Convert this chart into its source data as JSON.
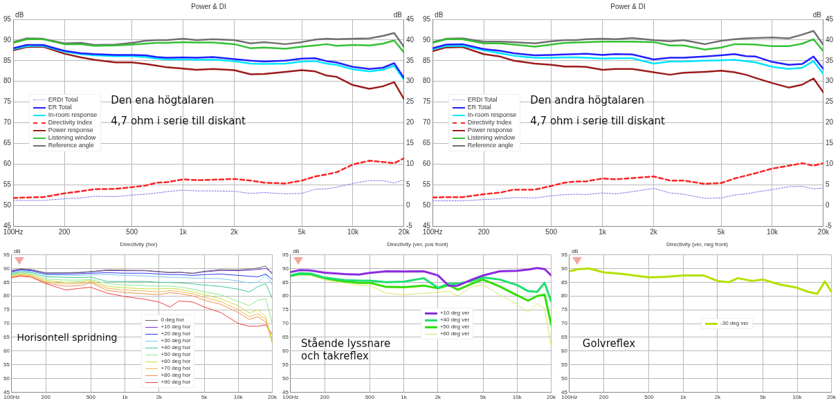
{
  "chart_data": [
    {
      "type": "line",
      "title": "Power & DI",
      "ylabel": "dB",
      "y2label": "dB",
      "log": "x",
      "grid": true,
      "legend": "left",
      "annotations": [
        "Den ena högtalaren",
        "4,7 ohm i serie till diskant"
      ],
      "x": [
        100,
        120,
        150,
        200,
        250,
        300,
        400,
        500,
        600,
        700,
        800,
        1000,
        1200,
        1500,
        2000,
        2500,
        3000,
        4000,
        5000,
        6000,
        7000,
        8000,
        10000,
        12500,
        15000,
        17500,
        20000
      ],
      "xlim": [
        100,
        20000
      ],
      "xticks": [
        {
          "value": 100,
          "label": "100Hz"
        },
        {
          "value": 200,
          "label": "200"
        },
        {
          "value": 500,
          "label": "500"
        },
        {
          "value": 1000,
          "label": "1k"
        },
        {
          "value": 2000,
          "label": "2k"
        },
        {
          "value": 5000,
          "label": "5k"
        },
        {
          "value": 10000,
          "label": "10k"
        },
        {
          "value": 20000,
          "label": "20k"
        }
      ],
      "ylim": [
        45,
        95
      ],
      "yticks": [
        45,
        50,
        55,
        60,
        65,
        70,
        75,
        80,
        85,
        90,
        95
      ],
      "y2lim": [
        -5,
        45
      ],
      "y2ticks": [
        -5,
        0,
        5,
        10,
        15,
        20,
        25,
        30,
        35,
        40,
        45
      ],
      "series": [
        {
          "name": "ERDI Total",
          "color": "#6f6fe8",
          "axis": "y2",
          "line_style": "dotted",
          "values": [
            1.2,
            1.2,
            1.2,
            1.6,
            1.8,
            2.2,
            2.1,
            2.5,
            2.7,
            3.0,
            3.3,
            3.7,
            3.5,
            3.5,
            3.4,
            2.9,
            3.1,
            2.8,
            2.9,
            3.9,
            4.0,
            4.4,
            5.3,
            6.0,
            6.0,
            5.4,
            6.2
          ]
        },
        {
          "name": "ER Total",
          "color": "#1f1fff",
          "values": [
            88.0,
            88.8,
            88.8,
            87.4,
            86.8,
            86.6,
            86.4,
            86.4,
            86.3,
            85.9,
            85.7,
            85.8,
            85.7,
            85.9,
            85.4,
            85.0,
            84.8,
            85.0,
            85.5,
            85.6,
            84.9,
            84.6,
            83.5,
            83.0,
            83.3,
            84.4,
            80.8
          ]
        },
        {
          "name": "In-room response",
          "color": "#00e5ff",
          "values": [
            87.8,
            88.5,
            88.6,
            87.2,
            86.6,
            86.3,
            86.1,
            86.1,
            85.9,
            85.5,
            85.3,
            85.3,
            85.2,
            85.3,
            84.9,
            84.3,
            84.2,
            84.3,
            84.8,
            84.9,
            84.3,
            84.0,
            82.9,
            82.4,
            82.8,
            83.8,
            80.3
          ]
        },
        {
          "name": "Directivity Index",
          "color": "#ff2020",
          "axis": "y2",
          "line_style": "dashed",
          "values": [
            1.8,
            1.9,
            2.0,
            2.9,
            3.4,
            3.9,
            4.0,
            4.4,
            4.8,
            5.5,
            5.6,
            6.3,
            6.1,
            6.2,
            6.4,
            6.0,
            5.5,
            5.3,
            6.0,
            7.0,
            7.5,
            8.0,
            9.9,
            10.8,
            10.5,
            10.2,
            11.4
          ]
        },
        {
          "name": "Power response",
          "color": "#9b1b1b",
          "values": [
            87.5,
            88.3,
            88.4,
            86.7,
            85.8,
            85.2,
            84.6,
            84.6,
            84.2,
            83.8,
            83.4,
            83.1,
            82.8,
            83.0,
            82.7,
            81.7,
            81.8,
            82.3,
            82.7,
            82.4,
            81.4,
            81.1,
            79.1,
            78.2,
            78.8,
            79.8,
            75.7
          ]
        },
        {
          "name": "Listening window",
          "color": "#33c033",
          "values": [
            89.3,
            90.2,
            90.2,
            89.0,
            89.0,
            88.6,
            88.7,
            88.9,
            89.1,
            89.3,
            89.3,
            89.5,
            89.4,
            89.4,
            89.0,
            88.0,
            88.2,
            87.9,
            88.4,
            88.7,
            89.0,
            88.6,
            88.8,
            88.7,
            89.1,
            89.9,
            87.0
          ]
        },
        {
          "name": "Reference angle",
          "color": "#707070",
          "values": [
            89.5,
            90.4,
            90.3,
            89.2,
            89.3,
            88.8,
            88.9,
            89.3,
            89.8,
            90.0,
            90.0,
            90.3,
            90.0,
            90.2,
            90.0,
            89.2,
            89.5,
            89.0,
            89.5,
            90.1,
            90.3,
            90.2,
            90.3,
            90.4,
            91.0,
            91.7,
            88.3
          ]
        }
      ]
    },
    {
      "type": "line",
      "title": "Power & DI",
      "ylabel": "dB",
      "y2label": "dB",
      "log": "x",
      "grid": true,
      "legend": "left",
      "annotations": [
        "Den andra högtalaren",
        "4,7 ohm i serie till diskant"
      ],
      "x": [
        100,
        120,
        150,
        200,
        250,
        300,
        400,
        500,
        600,
        700,
        800,
        1000,
        1200,
        1500,
        2000,
        2500,
        3000,
        4000,
        5000,
        6000,
        7000,
        8000,
        10000,
        12500,
        15000,
        17500,
        20000
      ],
      "xlim": [
        100,
        20000
      ],
      "xticks": [
        {
          "value": 100,
          "label": "100Hz"
        },
        {
          "value": 200,
          "label": "200"
        },
        {
          "value": 500,
          "label": "500"
        },
        {
          "value": 1000,
          "label": "1k"
        },
        {
          "value": 2000,
          "label": "2k"
        },
        {
          "value": 5000,
          "label": "5k"
        },
        {
          "value": 10000,
          "label": "10k"
        },
        {
          "value": 20000,
          "label": "20k"
        }
      ],
      "ylim": [
        45,
        95
      ],
      "yticks": [
        45,
        50,
        55,
        60,
        65,
        70,
        75,
        80,
        85,
        90,
        95
      ],
      "y2lim": [
        -5,
        45
      ],
      "y2ticks": [
        -5,
        0,
        5,
        10,
        15,
        20,
        25,
        30,
        35,
        40,
        45
      ],
      "series": [
        {
          "name": "ERDI Total",
          "color": "#6f6fe8",
          "axis": "y2",
          "line_style": "dotted",
          "values": [
            1.1,
            1.1,
            1.1,
            1.4,
            1.6,
            1.9,
            1.8,
            2.3,
            2.6,
            2.7,
            2.6,
            3.0,
            2.8,
            3.3,
            4.1,
            3.0,
            2.7,
            1.7,
            1.8,
            2.5,
            2.8,
            3.2,
            3.8,
            4.5,
            4.6,
            4.0,
            4.2
          ]
        },
        {
          "name": "ER Total",
          "color": "#1f1fff",
          "values": [
            88.0,
            88.9,
            89.0,
            87.8,
            87.4,
            86.8,
            86.3,
            86.4,
            86.5,
            86.6,
            86.7,
            86.4,
            86.6,
            86.5,
            85.3,
            85.7,
            85.7,
            86.0,
            86.3,
            86.6,
            86.1,
            86.0,
            84.7,
            84.0,
            84.2,
            86.0,
            83.0
          ]
        },
        {
          "name": "In-room response",
          "color": "#00e5ff",
          "values": [
            87.8,
            88.5,
            88.6,
            87.5,
            86.8,
            86.2,
            85.7,
            85.7,
            85.8,
            85.8,
            85.7,
            85.5,
            85.6,
            85.6,
            84.3,
            84.8,
            84.8,
            85.0,
            85.1,
            85.2,
            84.9,
            84.6,
            83.5,
            83.0,
            83.3,
            84.9,
            81.8
          ]
        },
        {
          "name": "Directivity Index",
          "color": "#ff2020",
          "axis": "y2",
          "line_style": "dashed",
          "values": [
            1.9,
            2.0,
            2.0,
            2.7,
            3.1,
            3.8,
            3.8,
            4.7,
            5.5,
            5.8,
            5.8,
            6.5,
            6.3,
            6.6,
            7.0,
            6.0,
            6.0,
            5.2,
            5.4,
            6.5,
            7.2,
            7.8,
            8.9,
            9.6,
            10.2,
            9.6,
            10.2
          ]
        },
        {
          "name": "Power response",
          "color": "#9b1b1b",
          "values": [
            87.3,
            88.2,
            88.3,
            86.6,
            86.0,
            85.0,
            84.3,
            84.0,
            83.6,
            83.6,
            83.5,
            82.8,
            83.0,
            83.0,
            82.2,
            81.6,
            82.1,
            82.3,
            82.6,
            82.2,
            81.6,
            80.8,
            79.6,
            78.5,
            79.2,
            80.7,
            77.3
          ]
        },
        {
          "name": "Listening window",
          "color": "#33c033",
          "values": [
            89.3,
            90.2,
            90.2,
            89.2,
            89.2,
            88.9,
            88.4,
            88.9,
            89.3,
            89.4,
            89.5,
            89.6,
            89.6,
            89.6,
            89.5,
            88.7,
            88.7,
            87.7,
            88.2,
            89.0,
            89.0,
            88.9,
            88.5,
            88.5,
            89.1,
            90.2,
            87.3
          ]
        },
        {
          "name": "Reference angle",
          "color": "#707070",
          "values": [
            89.5,
            90.3,
            90.4,
            89.6,
            89.6,
            89.5,
            89.2,
            89.7,
            90.0,
            90.0,
            90.2,
            90.3,
            90.2,
            90.5,
            90.0,
            89.7,
            90.0,
            89.0,
            89.8,
            90.2,
            90.4,
            90.5,
            90.6,
            90.4,
            91.3,
            92.2,
            88.8
          ]
        }
      ]
    },
    {
      "type": "line",
      "title": "Directivity (hor)",
      "ylabel": "dB",
      "log": "x",
      "grid": true,
      "legend": "bottom",
      "annotations": [
        "Horisontell spridning"
      ],
      "x": [
        100,
        120,
        150,
        200,
        300,
        400,
        500,
        700,
        1000,
        1500,
        2000,
        2500,
        3000,
        4000,
        5000,
        7000,
        10000,
        12500,
        15000,
        17500,
        20000
      ],
      "xlim": [
        100,
        20000
      ],
      "xticks": [
        {
          "value": 100,
          "label": "100Hz"
        },
        {
          "value": 200,
          "label": "200"
        },
        {
          "value": 500,
          "label": "500"
        },
        {
          "value": 1000,
          "label": "1k"
        },
        {
          "value": 2000,
          "label": "2k"
        },
        {
          "value": 5000,
          "label": "5k"
        },
        {
          "value": 10000,
          "label": "10k"
        },
        {
          "value": 20000,
          "label": "20k"
        }
      ],
      "ylim": [
        45,
        95
      ],
      "yticks": [
        45,
        50,
        55,
        60,
        65,
        70,
        75,
        80,
        85,
        90,
        95
      ],
      "series": [
        {
          "name": "0 deg hor",
          "color": "#666666",
          "values": [
            89.3,
            89.9,
            89.6,
            88.4,
            88.5,
            88.6,
            88.9,
            89.5,
            89.4,
            89.3,
            88.9,
            88.6,
            88.7,
            88.3,
            89.0,
            89.6,
            89.5,
            89.8,
            90.2,
            90.9,
            87.8
          ]
        },
        {
          "name": "+10 deg hor",
          "color": "#7a2fd6",
          "values": [
            89.1,
            89.8,
            89.5,
            88.4,
            88.4,
            88.5,
            88.8,
            89.3,
            89.2,
            89.2,
            88.8,
            88.5,
            88.6,
            88.2,
            88.8,
            89.3,
            89.2,
            89.4,
            89.7,
            90.0,
            88.5
          ]
        },
        {
          "name": "+20 deg hor",
          "color": "#2a3cf0",
          "values": [
            88.8,
            89.5,
            89.2,
            88.0,
            88.0,
            88.1,
            88.3,
            88.5,
            88.3,
            88.3,
            88.0,
            87.8,
            87.8,
            87.5,
            87.8,
            88.0,
            87.5,
            87.2,
            87.0,
            88.0,
            86.0
          ]
        },
        {
          "name": "+30 deg hor",
          "color": "#7ac8f0",
          "values": [
            88.5,
            89.2,
            88.9,
            87.6,
            87.6,
            87.5,
            87.8,
            87.8,
            87.5,
            87.3,
            87.0,
            86.8,
            86.8,
            86.5,
            86.5,
            86.3,
            85.5,
            84.8,
            85.0,
            87.8,
            84.0
          ]
        },
        {
          "name": "+40 deg hor",
          "color": "#3cc88c",
          "values": [
            88.1,
            88.8,
            88.5,
            87.0,
            86.8,
            86.7,
            86.9,
            85.3,
            85.3,
            85.3,
            85.0,
            84.9,
            84.8,
            84.4,
            84.0,
            83.5,
            82.5,
            81.5,
            83.5,
            84.5,
            79.0
          ]
        },
        {
          "name": "+50 deg hor",
          "color": "#8ee88e",
          "values": [
            87.8,
            88.4,
            88.0,
            86.2,
            85.8,
            85.8,
            86.0,
            84.5,
            84.0,
            83.8,
            83.6,
            83.6,
            83.3,
            82.5,
            81.5,
            80.5,
            78.0,
            76.5,
            78.5,
            79.0,
            70.0
          ]
        },
        {
          "name": "+60 deg hor",
          "color": "#c8dc3c",
          "values": [
            87.5,
            88.1,
            87.6,
            85.6,
            85.0,
            85.2,
            85.6,
            83.5,
            83.0,
            82.6,
            82.6,
            82.8,
            82.5,
            81.5,
            80.5,
            79.0,
            76.5,
            73.8,
            75.0,
            72.5,
            62.5
          ]
        },
        {
          "name": "+70 deg hor",
          "color": "#f0b450",
          "values": [
            87.2,
            87.8,
            87.3,
            85.2,
            84.4,
            84.5,
            85.2,
            82.8,
            82.2,
            81.8,
            81.5,
            82.0,
            81.7,
            80.8,
            79.5,
            78.0,
            75.0,
            72.5,
            73.5,
            71.5,
            64.0
          ]
        },
        {
          "name": "+80 deg hor",
          "color": "#f08c50",
          "values": [
            86.9,
            87.5,
            87.0,
            84.8,
            83.5,
            83.8,
            84.8,
            82.0,
            81.3,
            80.8,
            80.5,
            81.2,
            80.9,
            80.0,
            78.5,
            77.0,
            74.0,
            71.5,
            72.5,
            70.5,
            63.5
          ]
        },
        {
          "name": "+90 deg hor",
          "color": "#f04040",
          "values": [
            86.7,
            87.2,
            86.8,
            84.5,
            82.2,
            82.8,
            83.2,
            81.0,
            79.8,
            78.8,
            77.8,
            76.0,
            78.2,
            77.8,
            76.0,
            74.0,
            70.0,
            69.0,
            69.0,
            69.5,
            66.0
          ]
        }
      ]
    },
    {
      "type": "line",
      "title": "Directivity (ver, pos front)",
      "ylabel": "dB",
      "log": "x",
      "grid": true,
      "legend": "center",
      "annotations": [
        "Stående lyssnare och takreflex"
      ],
      "x": [
        100,
        120,
        150,
        200,
        300,
        400,
        500,
        700,
        1000,
        1500,
        2000,
        2500,
        3000,
        4000,
        5000,
        7000,
        10000,
        12500,
        15000,
        17500,
        20000
      ],
      "xlim": [
        100,
        20000
      ],
      "xticks": [
        {
          "value": 100,
          "label": "100Hz"
        },
        {
          "value": 200,
          "label": "200"
        },
        {
          "value": 500,
          "label": "500"
        },
        {
          "value": 1000,
          "label": "1k"
        },
        {
          "value": 2000,
          "label": "2k"
        },
        {
          "value": 5000,
          "label": "5k"
        },
        {
          "value": 10000,
          "label": "10k"
        },
        {
          "value": 20000,
          "label": "20k"
        }
      ],
      "ylim": [
        45,
        95
      ],
      "yticks": [
        45,
        50,
        55,
        60,
        65,
        70,
        75,
        80,
        85,
        90,
        95
      ],
      "series": [
        {
          "name": "+10 deg ver",
          "color": "#8b2be0",
          "values": [
            88.7,
            89.4,
            89.3,
            88.5,
            88.0,
            87.8,
            88.4,
            89.0,
            88.9,
            89.0,
            87.5,
            83.7,
            83.8,
            86.0,
            87.5,
            89.0,
            89.2,
            89.6,
            90.2,
            89.8,
            87.5
          ]
        },
        {
          "name": "+40 deg ver",
          "color": "#1ee070",
          "values": [
            87.5,
            88.3,
            88.2,
            86.7,
            85.8,
            85.6,
            85.6,
            85.0,
            85.2,
            86.5,
            83.0,
            84.5,
            84.5,
            85.5,
            86.8,
            86.0,
            84.0,
            81.8,
            81.5,
            84.8,
            78.0
          ]
        },
        {
          "name": "+50 deg ver",
          "color": "#33dd00",
          "values": [
            87.3,
            88.0,
            87.9,
            86.5,
            85.3,
            84.8,
            84.8,
            83.3,
            83.2,
            83.8,
            82.8,
            84.0,
            82.3,
            84.5,
            86.0,
            83.5,
            80.3,
            78.3,
            80.0,
            80.5,
            69.5
          ]
        },
        {
          "name": "+60 deg ver",
          "color": "#d8e860",
          "values": [
            87.2,
            87.8,
            87.6,
            85.8,
            84.8,
            84.0,
            83.8,
            81.0,
            80.5,
            81.0,
            81.3,
            81.8,
            80.0,
            83.5,
            84.0,
            80.5,
            77.0,
            74.0,
            77.2,
            75.5,
            61.5
          ]
        }
      ]
    },
    {
      "type": "line",
      "title": "Directivity (ver, neg front)",
      "ylabel": "dB",
      "log": "x",
      "grid": true,
      "legend": "center",
      "annotations": [
        "Golvreflex"
      ],
      "x": [
        100,
        120,
        150,
        200,
        300,
        400,
        500,
        700,
        1000,
        1500,
        2000,
        2500,
        3000,
        4000,
        5000,
        7000,
        10000,
        12500,
        15000,
        17500,
        20000
      ],
      "xlim": [
        100,
        20000
      ],
      "xticks": [
        {
          "value": 100,
          "label": "100Hz"
        },
        {
          "value": 200,
          "label": "200"
        },
        {
          "value": 500,
          "label": "500"
        },
        {
          "value": 1000,
          "label": "1k"
        },
        {
          "value": 2000,
          "label": "2k"
        },
        {
          "value": 5000,
          "label": "5k"
        },
        {
          "value": 10000,
          "label": "10k"
        },
        {
          "value": 20000,
          "label": "20k"
        }
      ],
      "ylim": [
        45,
        95
      ],
      "yticks": [
        45,
        50,
        55,
        60,
        65,
        70,
        75,
        80,
        85,
        90,
        95
      ],
      "series": [
        {
          "name": "-30 deg ver",
          "color": "#b4e000",
          "values": [
            89.0,
            89.8,
            90.0,
            88.6,
            88.0,
            87.3,
            86.8,
            87.0,
            87.5,
            87.5,
            85.5,
            85.0,
            86.5,
            85.5,
            86.0,
            84.2,
            83.0,
            81.5,
            80.8,
            85.3,
            81.5
          ]
        }
      ]
    }
  ]
}
